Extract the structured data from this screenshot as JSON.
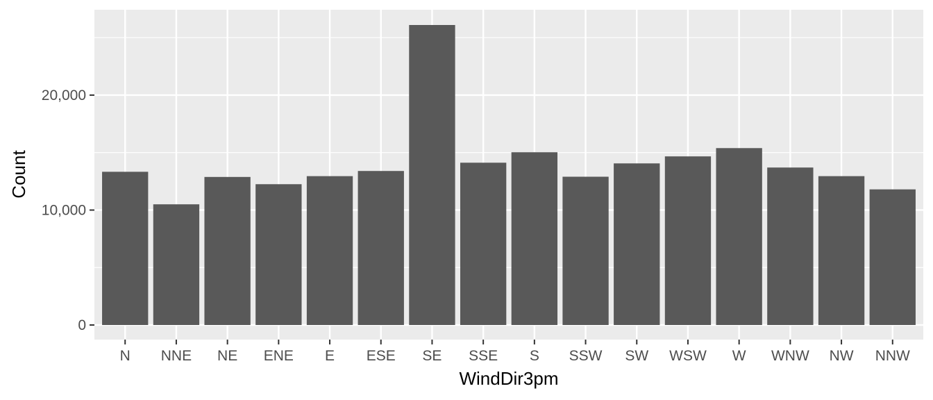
{
  "chart_data": {
    "type": "bar",
    "xlabel": "WindDir3pm",
    "ylabel": "Count",
    "categories": [
      "N",
      "NNE",
      "NE",
      "ENE",
      "E",
      "ESE",
      "SE",
      "SSE",
      "S",
      "SSW",
      "SW",
      "WSW",
      "W",
      "WNW",
      "NW",
      "NNW"
    ],
    "values": [
      13330,
      10500,
      12880,
      12250,
      12950,
      13400,
      26100,
      14120,
      15030,
      12900,
      14060,
      14670,
      15390,
      13700,
      12950,
      11800
    ],
    "ylim": [
      0,
      27400
    ],
    "yticks": [
      0,
      10000,
      20000
    ],
    "ytick_labels": [
      "0",
      "10,000",
      "20,000"
    ],
    "grid": true,
    "colors": {
      "bar": "#595959",
      "panel": "#ebebeb",
      "grid_major": "#ffffff",
      "tick_text": "#4d4d4d",
      "tick_mark": "#333333"
    }
  }
}
